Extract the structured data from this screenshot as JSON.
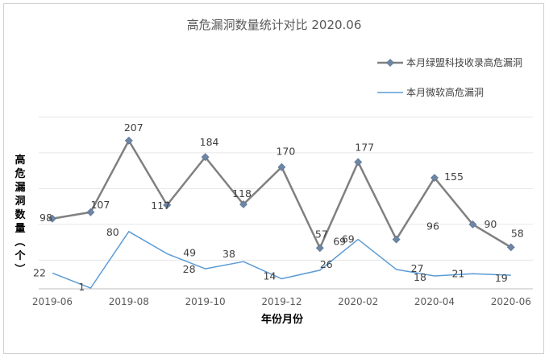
{
  "chart_data": {
    "type": "line",
    "title": "高危漏洞数量统计对比 2020.06",
    "xlabel": "年份月份",
    "ylabel": "高危漏洞数量（个）",
    "ylim": [
      0,
      260
    ],
    "grid": true,
    "legend_position": "top-right",
    "x": [
      "2019-06",
      "2019-07",
      "2019-08",
      "2019-09",
      "2019-10",
      "2019-11",
      "2019-12",
      "2020-01",
      "2020-02",
      "2020-03",
      "2020-04",
      "2020-05",
      "2020-06"
    ],
    "tick_labels": [
      "2019-06",
      "2019-08",
      "2019-10",
      "2019-12",
      "2020-02",
      "2020-04",
      "2020-06"
    ],
    "series": [
      {
        "name": "本月绿盟科技收录高危漏洞",
        "color": "#808080",
        "marker": "diamond",
        "values": [
          98,
          107,
          207,
          117,
          184,
          118,
          170,
          57,
          177,
          69,
          155,
          90,
          58
        ],
        "labels": [
          "98",
          "107",
          "207",
          "117",
          "184",
          "118",
          "170",
          "57",
          "177",
          "",
          "155",
          "90",
          "58"
        ]
      },
      {
        "name": "本月微软高危漏洞",
        "color": "#5b9bd5",
        "marker": "none",
        "values": [
          22,
          1,
          80,
          49,
          28,
          38,
          14,
          26,
          69,
          27,
          18,
          21,
          19
        ],
        "labels": [
          "22",
          "1",
          "80",
          "49",
          "28",
          "38",
          "14",
          "26",
          "69",
          "27",
          "18",
          "21",
          "19"
        ]
      }
    ],
    "extra_labels": [
      "96"
    ]
  }
}
